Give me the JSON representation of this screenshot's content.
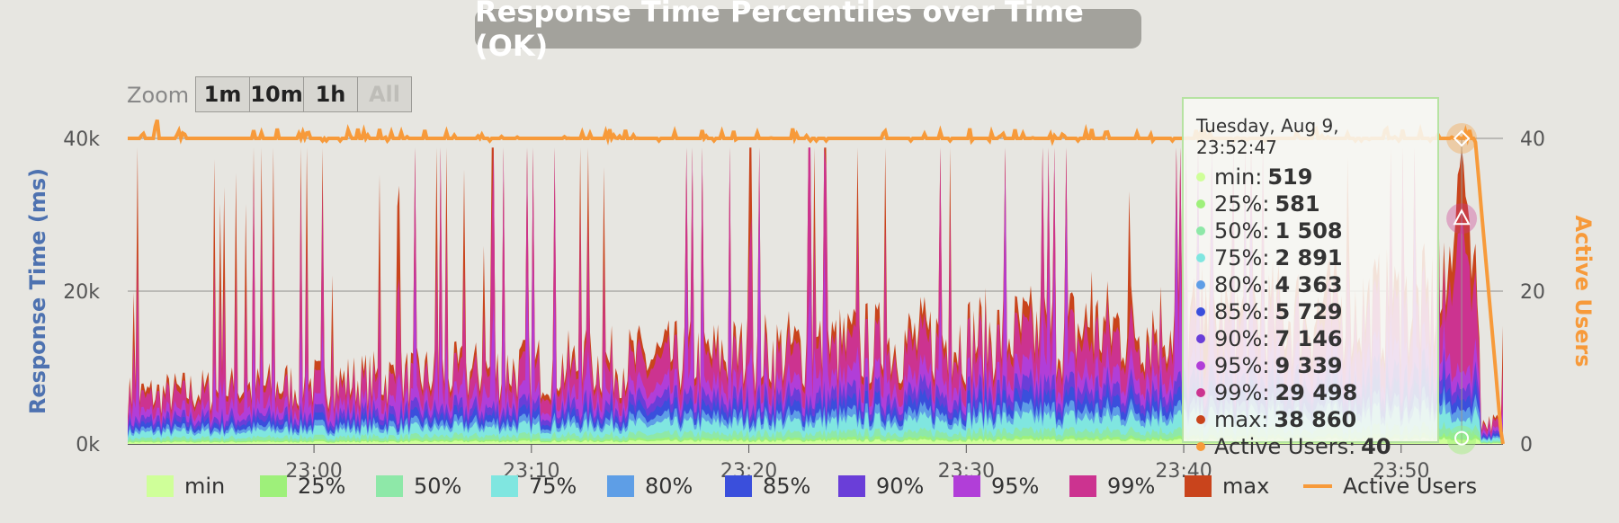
{
  "title": "Response Time Percentiles over Time (OK)",
  "zoom": {
    "label": "Zoom",
    "buttons": [
      "1m",
      "10m",
      "1h",
      "All"
    ]
  },
  "tooltip": {
    "header": "Tuesday, Aug 9, 23:52:47",
    "rows": [
      {
        "label": "min:",
        "value": "519",
        "color": "#cfff99"
      },
      {
        "label": "25%:",
        "value": "581",
        "color": "#9ef07a"
      },
      {
        "label": "50%:",
        "value": "1 508",
        "color": "#8ee8a8"
      },
      {
        "label": "75%:",
        "value": "2 891",
        "color": "#80e6e0"
      },
      {
        "label": "80%:",
        "value": "4 363",
        "color": "#5e9ee6"
      },
      {
        "label": "85%:",
        "value": "5 729",
        "color": "#3a4fdc"
      },
      {
        "label": "90%:",
        "value": "7 146",
        "color": "#6a3ed8"
      },
      {
        "label": "95%:",
        "value": "9 339",
        "color": "#b13ed8"
      },
      {
        "label": "99%:",
        "value": "29 498",
        "color": "#cc3390"
      },
      {
        "label": "max:",
        "value": "38 860",
        "color": "#c9441c"
      },
      {
        "label": "Active Users:",
        "value": "40",
        "color": "#f79a3a"
      }
    ]
  },
  "chart_data": {
    "type": "area",
    "title": "Response Time Percentiles over Time (OK)",
    "ylabel": "Response Time (ms)",
    "y2label": "Active Users",
    "y_ticks": [
      "0k",
      "20k",
      "40k"
    ],
    "y2_ticks": [
      "0",
      "20",
      "40"
    ],
    "ylim": [
      0,
      40000
    ],
    "y2lim": [
      0,
      40
    ],
    "x_ticks": [
      "23:00",
      "23:10",
      "23:20",
      "23:30",
      "23:40",
      "23:50"
    ],
    "x_range": [
      "22:51:26",
      "23:54:41"
    ],
    "stacked": false,
    "series": [
      {
        "name": "min",
        "color": "#cfff99",
        "approx_level_ms": 300
      },
      {
        "name": "25%",
        "color": "#9ef07a",
        "approx_level_ms": 500
      },
      {
        "name": "50%",
        "color": "#8ee8a8",
        "approx_level_ms": 1000
      },
      {
        "name": "75%",
        "color": "#80e6e0",
        "approx_level_ms": 2000
      },
      {
        "name": "80%",
        "color": "#5e9ee6",
        "approx_level_ms": 2600
      },
      {
        "name": "85%",
        "color": "#3a4fdc",
        "approx_level_ms": 3400
      },
      {
        "name": "90%",
        "color": "#6a3ed8",
        "approx_level_ms": 4300
      },
      {
        "name": "95%",
        "color": "#b13ed8",
        "approx_level_ms": 5500
      },
      {
        "name": "99%",
        "color": "#cc3390",
        "approx_level_ms": 8000
      },
      {
        "name": "max",
        "color": "#c9441c",
        "approx_level_ms": 9000
      },
      {
        "name": "Active Users",
        "color": "#f79a3a",
        "axis": "right",
        "approx_level": 40
      }
    ],
    "highlighted_point": {
      "time": "23:52:47",
      "min": 519,
      "p25": 581,
      "p50": 1508,
      "p75": 2891,
      "p80": 4363,
      "p85": 5729,
      "p90": 7146,
      "p95": 9339,
      "p99": 29498,
      "max": 38860,
      "active_users": 40
    },
    "notable_max_spikes_ms": [
      {
        "time": "23:37:30",
        "value": 35000
      },
      {
        "time": "23:35:45",
        "value": 26000
      },
      {
        "time": "23:33:00",
        "value": 25000
      },
      {
        "time": "23:23:30",
        "value": 24000
      },
      {
        "time": "23:46:30",
        "value": 28000
      },
      {
        "time": "23:48:45",
        "value": 27000
      },
      {
        "time": "23:41:00",
        "value": 24000
      },
      {
        "time": "23:52:47",
        "value": 38860
      }
    ],
    "grid": true,
    "legend_position": "bottom"
  }
}
